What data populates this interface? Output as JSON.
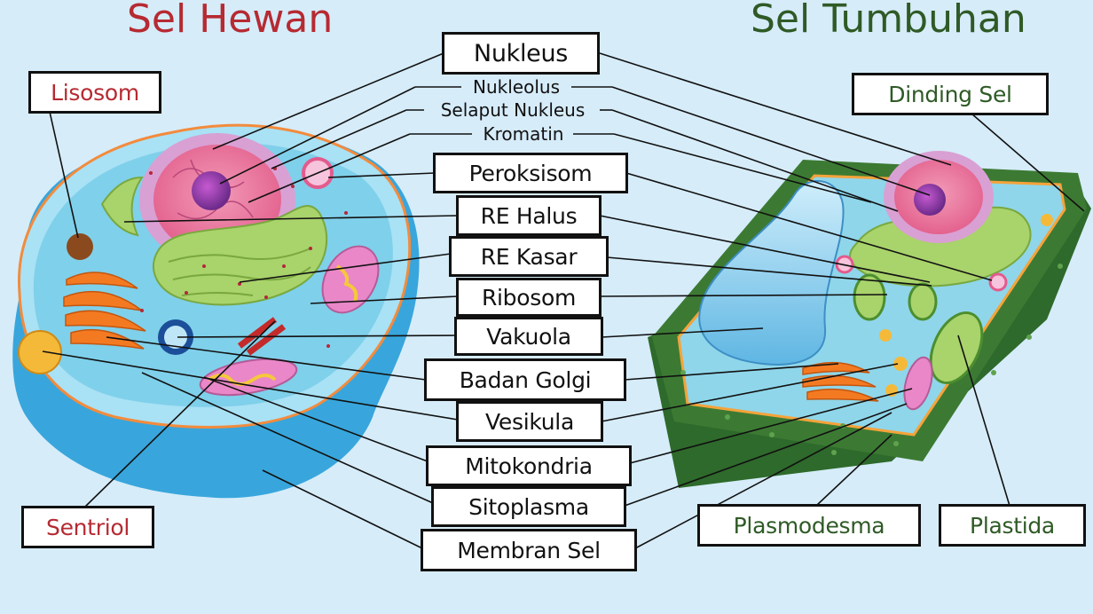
{
  "titles": {
    "animal": "Sel Hewan",
    "plant": "Sel Tumbuhan"
  },
  "center_labels": {
    "nukleus": "Nukleus",
    "nukleolus": "Nukleolus",
    "selaput_nukleus": "Selaput Nukleus",
    "kromatin": "Kromatin",
    "peroksisom": "Peroksisom",
    "re_halus": "RE Halus",
    "re_kasar": "RE Kasar",
    "ribosom": "Ribosom",
    "vakuola": "Vakuola",
    "badan_golgi": "Badan Golgi",
    "vesikula": "Vesikula",
    "mitokondria": "Mitokondria",
    "sitoplasma": "Sitoplasma",
    "membran_sel": "Membran Sel"
  },
  "animal_labels": {
    "lisosom": "Lisosom",
    "sentriol": "Sentriol"
  },
  "plant_labels": {
    "dinding_sel": "Dinding Sel",
    "plasmodesma": "Plasmodesma",
    "plastida": "Plastida"
  },
  "colors": {
    "background": "#d6ecf9",
    "animal_title": "#b62a32",
    "plant_title": "#2f5a26",
    "cell_wall": "#3c7a33",
    "cytoplasm": "#8fd6ea",
    "nucleus": "#e8759a",
    "golgi": "#f47a22",
    "er": "#a9d36b"
  }
}
